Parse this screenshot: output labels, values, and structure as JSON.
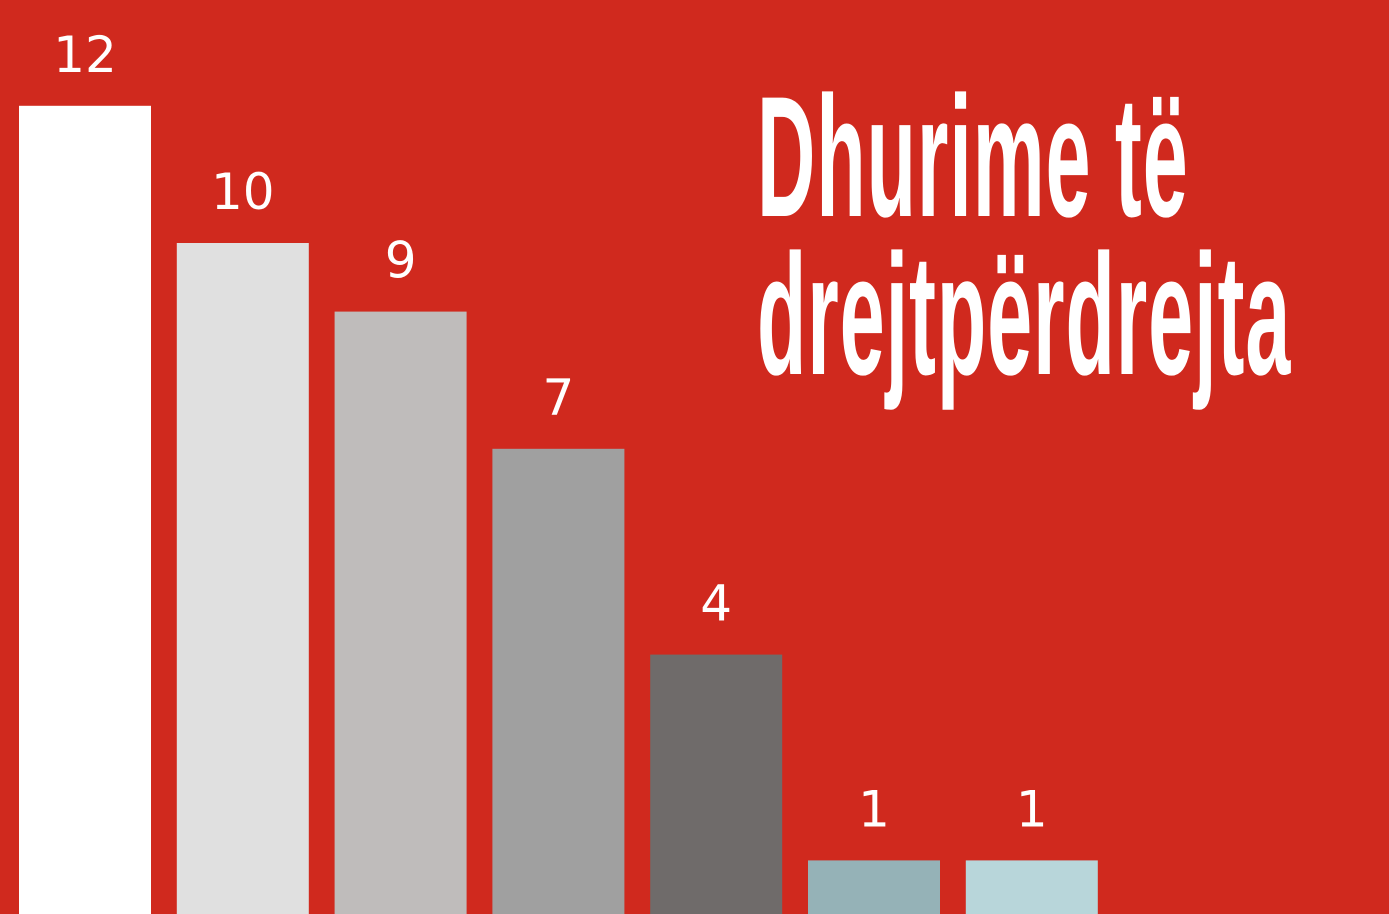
{
  "chart_data": {
    "type": "bar",
    "title": "Dhurime të\ndrejtpërdrejta",
    "categories": [
      null,
      null,
      null,
      null,
      null,
      null,
      null
    ],
    "values": [
      12,
      10,
      9,
      7,
      4,
      1,
      1
    ],
    "colors": [
      "#ffffff",
      "#e0e0e0",
      "#bfbcbb",
      "#a0a0a0",
      "#6f6b6a",
      "#95b2b7",
      "#b8d6da"
    ]
  }
}
